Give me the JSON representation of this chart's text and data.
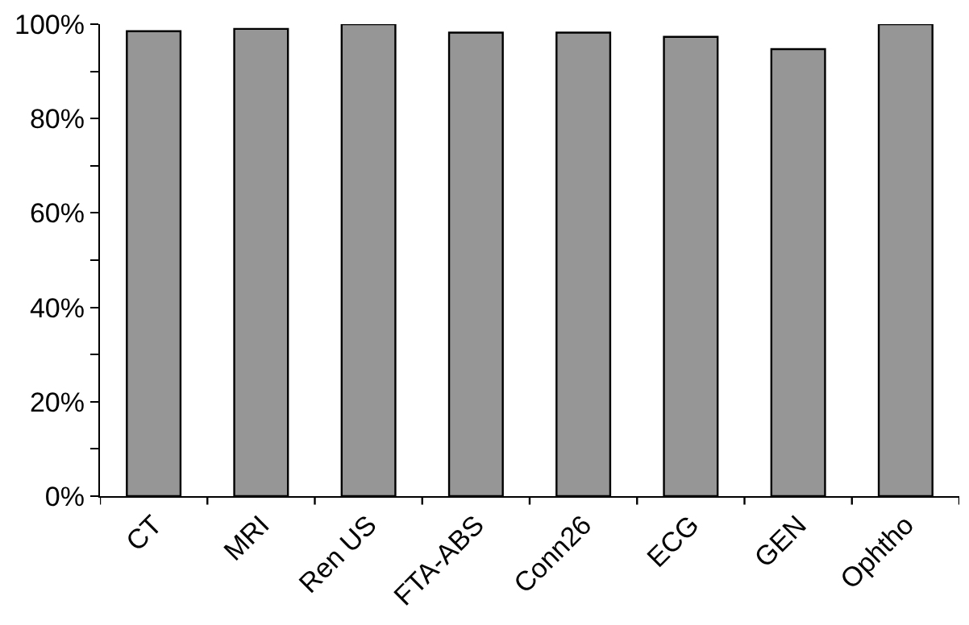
{
  "chart_data": {
    "type": "bar",
    "categories": [
      "CT",
      "MRI",
      "Ren US",
      "FTA-ABS",
      "Conn26",
      "ECG",
      "GEN",
      "Ophtho"
    ],
    "values": [
      98.5,
      99.0,
      100,
      98.2,
      98.2,
      97.3,
      94.7,
      100
    ],
    "color": "#969696",
    "ylim": [
      0,
      100
    ],
    "yticks": [
      {
        "value": 0,
        "label": "0%"
      },
      {
        "value": 10,
        "label": null
      },
      {
        "value": 20,
        "label": "20%"
      },
      {
        "value": 30,
        "label": null
      },
      {
        "value": 40,
        "label": "40%"
      },
      {
        "value": 50,
        "label": null
      },
      {
        "value": 60,
        "label": "60%"
      },
      {
        "value": 70,
        "label": null
      },
      {
        "value": 80,
        "label": "80%"
      },
      {
        "value": 90,
        "label": null
      },
      {
        "value": 100,
        "label": "100%"
      }
    ],
    "grid": false
  }
}
